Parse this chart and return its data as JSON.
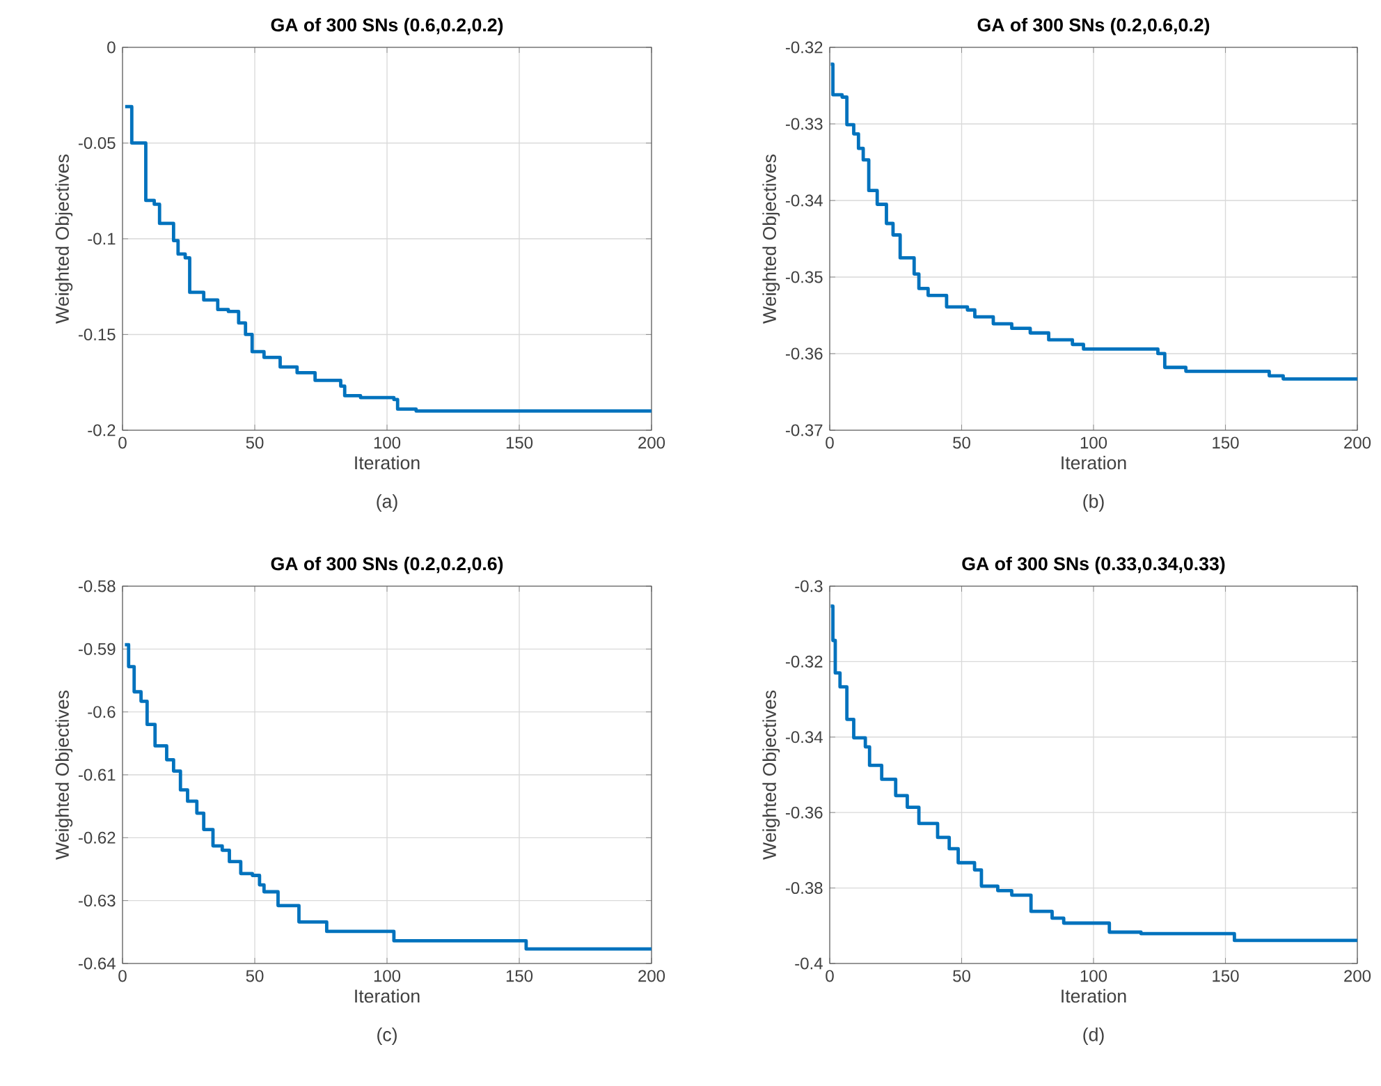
{
  "chart_data": [
    {
      "type": "step",
      "title": "GA of 300 SNs (0.6,0.2,0.2)",
      "xlabel": "Iteration",
      "ylabel": "Weighted Objectives",
      "annotations": [
        "(a)"
      ],
      "grid": true,
      "xlim": [
        0,
        200
      ],
      "ylim": [
        -0.2,
        0
      ],
      "xticks": [
        0,
        50,
        100,
        150,
        200
      ],
      "yticks": [
        -0.2,
        -0.15,
        -0.1,
        -0.05,
        0
      ],
      "series": [
        {
          "color": "#0072bd",
          "x": [
            1,
            3.5,
            8.8,
            12,
            14,
            19.3,
            21,
            23.7,
            25.4,
            30.7,
            36,
            40,
            43.9,
            46.5,
            49,
            53.5,
            59.6,
            66,
            72.8,
            82.5,
            84,
            90,
            102.6,
            104,
            111,
            200
          ],
          "values": [
            -0.031,
            -0.05,
            -0.08,
            -0.082,
            -0.092,
            -0.101,
            -0.108,
            -0.11,
            -0.128,
            -0.132,
            -0.137,
            -0.138,
            -0.144,
            -0.15,
            -0.159,
            -0.162,
            -0.167,
            -0.17,
            -0.174,
            -0.177,
            -0.182,
            -0.183,
            -0.184,
            -0.189,
            -0.19,
            -0.19
          ]
        }
      ]
    },
    {
      "type": "step",
      "title": "GA of 300 SNs (0.2,0.6,0.2)",
      "xlabel": "Iteration",
      "ylabel": "Weighted Objectives",
      "annotations": [
        "(b)"
      ],
      "grid": true,
      "xlim": [
        0,
        200
      ],
      "ylim": [
        -0.37,
        -0.32
      ],
      "xticks": [
        0,
        50,
        100,
        150,
        200
      ],
      "yticks": [
        -0.37,
        -0.36,
        -0.35,
        -0.34,
        -0.33,
        -0.32
      ],
      "series": [
        {
          "color": "#0072bd",
          "x": [
            0.4,
            1.2,
            4.7,
            6.5,
            9.1,
            10.9,
            12.7,
            14.8,
            18,
            21.5,
            24,
            26.7,
            32,
            33.8,
            37.3,
            44.3,
            52.2,
            55,
            62,
            69,
            76,
            83,
            92,
            96.2,
            124.4,
            127,
            135,
            166.6,
            171.9,
            200
          ],
          "values": [
            -0.3222,
            -0.3262,
            -0.3265,
            -0.3301,
            -0.3313,
            -0.3332,
            -0.3347,
            -0.3387,
            -0.3405,
            -0.343,
            -0.3445,
            -0.3475,
            -0.3496,
            -0.3515,
            -0.3524,
            -0.3539,
            -0.3543,
            -0.3552,
            -0.3561,
            -0.3567,
            -0.3573,
            -0.3582,
            -0.3588,
            -0.3594,
            -0.36,
            -0.3618,
            -0.3623,
            -0.3629,
            -0.3633,
            -0.3633
          ]
        }
      ]
    },
    {
      "type": "step",
      "title": "GA of 300 SNs (0.2,0.2,0.6)",
      "xlabel": "Iteration",
      "ylabel": "Weighted Objectives",
      "annotations": [
        "(c)"
      ],
      "grid": true,
      "xlim": [
        0,
        200
      ],
      "ylim": [
        -0.64,
        -0.58
      ],
      "xticks": [
        0,
        50,
        100,
        150,
        200
      ],
      "yticks": [
        -0.64,
        -0.63,
        -0.62,
        -0.61,
        -0.6,
        -0.59,
        -0.58
      ],
      "series": [
        {
          "color": "#0072bd",
          "x": [
            0.9,
            2.3,
            4.4,
            7,
            9.3,
            12.3,
            16.7,
            19.3,
            21.9,
            24.6,
            28.1,
            30.7,
            34.2,
            37.7,
            40.4,
            44.7,
            49.1,
            51.8,
            53.5,
            58.8,
            66.7,
            77.2,
            102.6,
            152.6,
            200
          ],
          "values": [
            -0.5893,
            -0.5928,
            -0.5968,
            -0.5983,
            -0.602,
            -0.6054,
            -0.6076,
            -0.6094,
            -0.6124,
            -0.6142,
            -0.6161,
            -0.6187,
            -0.6213,
            -0.622,
            -0.6238,
            -0.6257,
            -0.626,
            -0.6275,
            -0.6286,
            -0.6308,
            -0.6334,
            -0.6349,
            -0.6364,
            -0.6377,
            -0.6377
          ]
        }
      ]
    },
    {
      "type": "step",
      "title": "GA of 300 SNs (0.33,0.34,0.33)",
      "xlabel": "Iteration",
      "ylabel": "Weighted Objectives",
      "annotations": [
        "(d)"
      ],
      "grid": true,
      "xlim": [
        0,
        200
      ],
      "ylim": [
        -0.4,
        -0.3
      ],
      "xticks": [
        0,
        50,
        100,
        150,
        200
      ],
      "yticks": [
        -0.4,
        -0.38,
        -0.36,
        -0.34,
        -0.32,
        -0.3
      ],
      "series": [
        {
          "color": "#0072bd",
          "x": [
            0.4,
            1.2,
            2.1,
            3.9,
            6.5,
            9.1,
            13.5,
            15.1,
            19.7,
            25,
            29.4,
            33.8,
            40.9,
            45.3,
            48.7,
            54.9,
            57.5,
            63.7,
            69,
            76.3,
            84.3,
            88.7,
            106,
            118,
            153.4,
            200
          ],
          "values": [
            -0.3053,
            -0.3144,
            -0.323,
            -0.3267,
            -0.3353,
            -0.3402,
            -0.3426,
            -0.3475,
            -0.3512,
            -0.3555,
            -0.3586,
            -0.3629,
            -0.3666,
            -0.3696,
            -0.3733,
            -0.3752,
            -0.3795,
            -0.3807,
            -0.3819,
            -0.3862,
            -0.388,
            -0.3893,
            -0.3917,
            -0.3921,
            -0.3939,
            -0.3939
          ]
        }
      ]
    }
  ]
}
